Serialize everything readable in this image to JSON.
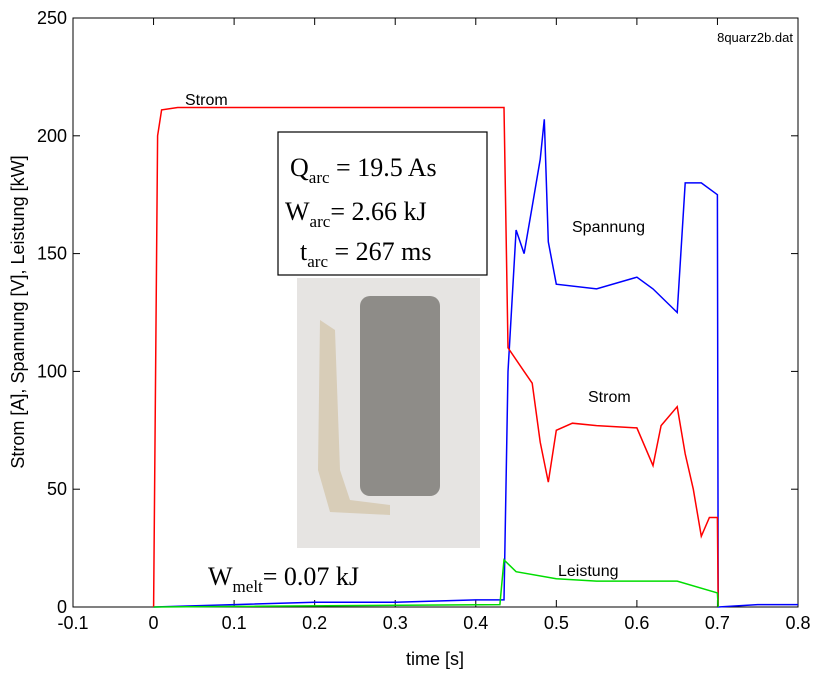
{
  "chart_data": {
    "type": "line",
    "xlabel": "time [s]",
    "ylabel": "Strom [A],  Spannung [V],  Leistung [kW]",
    "xlim": [
      -0.1,
      0.8
    ],
    "xticks": [
      -0.1,
      0,
      0.1,
      0.2,
      0.3,
      0.4,
      0.5,
      0.6,
      0.7,
      0.8
    ],
    "ylim": [
      0,
      250
    ],
    "yticks": [
      0,
      50,
      100,
      150,
      200,
      250
    ],
    "grid": false,
    "series": [
      {
        "name": "Strom",
        "color": "#ff0000",
        "x": [
          0,
          0.005,
          0.01,
          0.03,
          0.1,
          0.2,
          0.3,
          0.4,
          0.435,
          0.44,
          0.46,
          0.47,
          0.48,
          0.49,
          0.5,
          0.52,
          0.55,
          0.6,
          0.62,
          0.63,
          0.65,
          0.66,
          0.67,
          0.68,
          0.69,
          0.7,
          0.701
        ],
        "values": [
          0,
          200,
          211,
          212,
          212,
          212,
          212,
          212,
          212,
          110,
          100,
          95,
          70,
          53,
          75,
          78,
          77,
          76,
          60,
          77,
          85,
          65,
          50,
          30,
          38,
          38,
          0
        ]
      },
      {
        "name": "Spannung",
        "color": "#0000ff",
        "x": [
          0,
          0.1,
          0.2,
          0.3,
          0.4,
          0.435,
          0.44,
          0.45,
          0.46,
          0.47,
          0.48,
          0.485,
          0.49,
          0.5,
          0.55,
          0.6,
          0.62,
          0.65,
          0.66,
          0.68,
          0.7,
          0.701,
          0.75,
          0.8
        ],
        "values": [
          0,
          1,
          2,
          2,
          3,
          3,
          100,
          160,
          150,
          170,
          190,
          207,
          155,
          137,
          135,
          140,
          135,
          125,
          180,
          180,
          175,
          0,
          1,
          1
        ]
      },
      {
        "name": "Leistung",
        "color": "#00dd00",
        "x": [
          0,
          0.43,
          0.435,
          0.45,
          0.5,
          0.55,
          0.6,
          0.65,
          0.7,
          0.701
        ],
        "values": [
          0,
          1,
          20,
          15,
          12,
          11,
          11,
          11,
          6,
          0
        ]
      }
    ],
    "annotations": [
      "8quarz2b.dat",
      "Strom",
      "Spannung",
      "Strom",
      "Leistung"
    ],
    "formulas": [
      {
        "main": "Q",
        "sub": "arc",
        "rest": " = 19.5 As"
      },
      {
        "main": "W",
        "sub": "arc",
        "rest": "= 2.66 kJ"
      },
      {
        "main": "t",
        "sub": "arc",
        "rest": " = 267 ms"
      },
      {
        "main": "W",
        "sub": "melt",
        "rest": "= 0.07 kJ"
      }
    ]
  }
}
